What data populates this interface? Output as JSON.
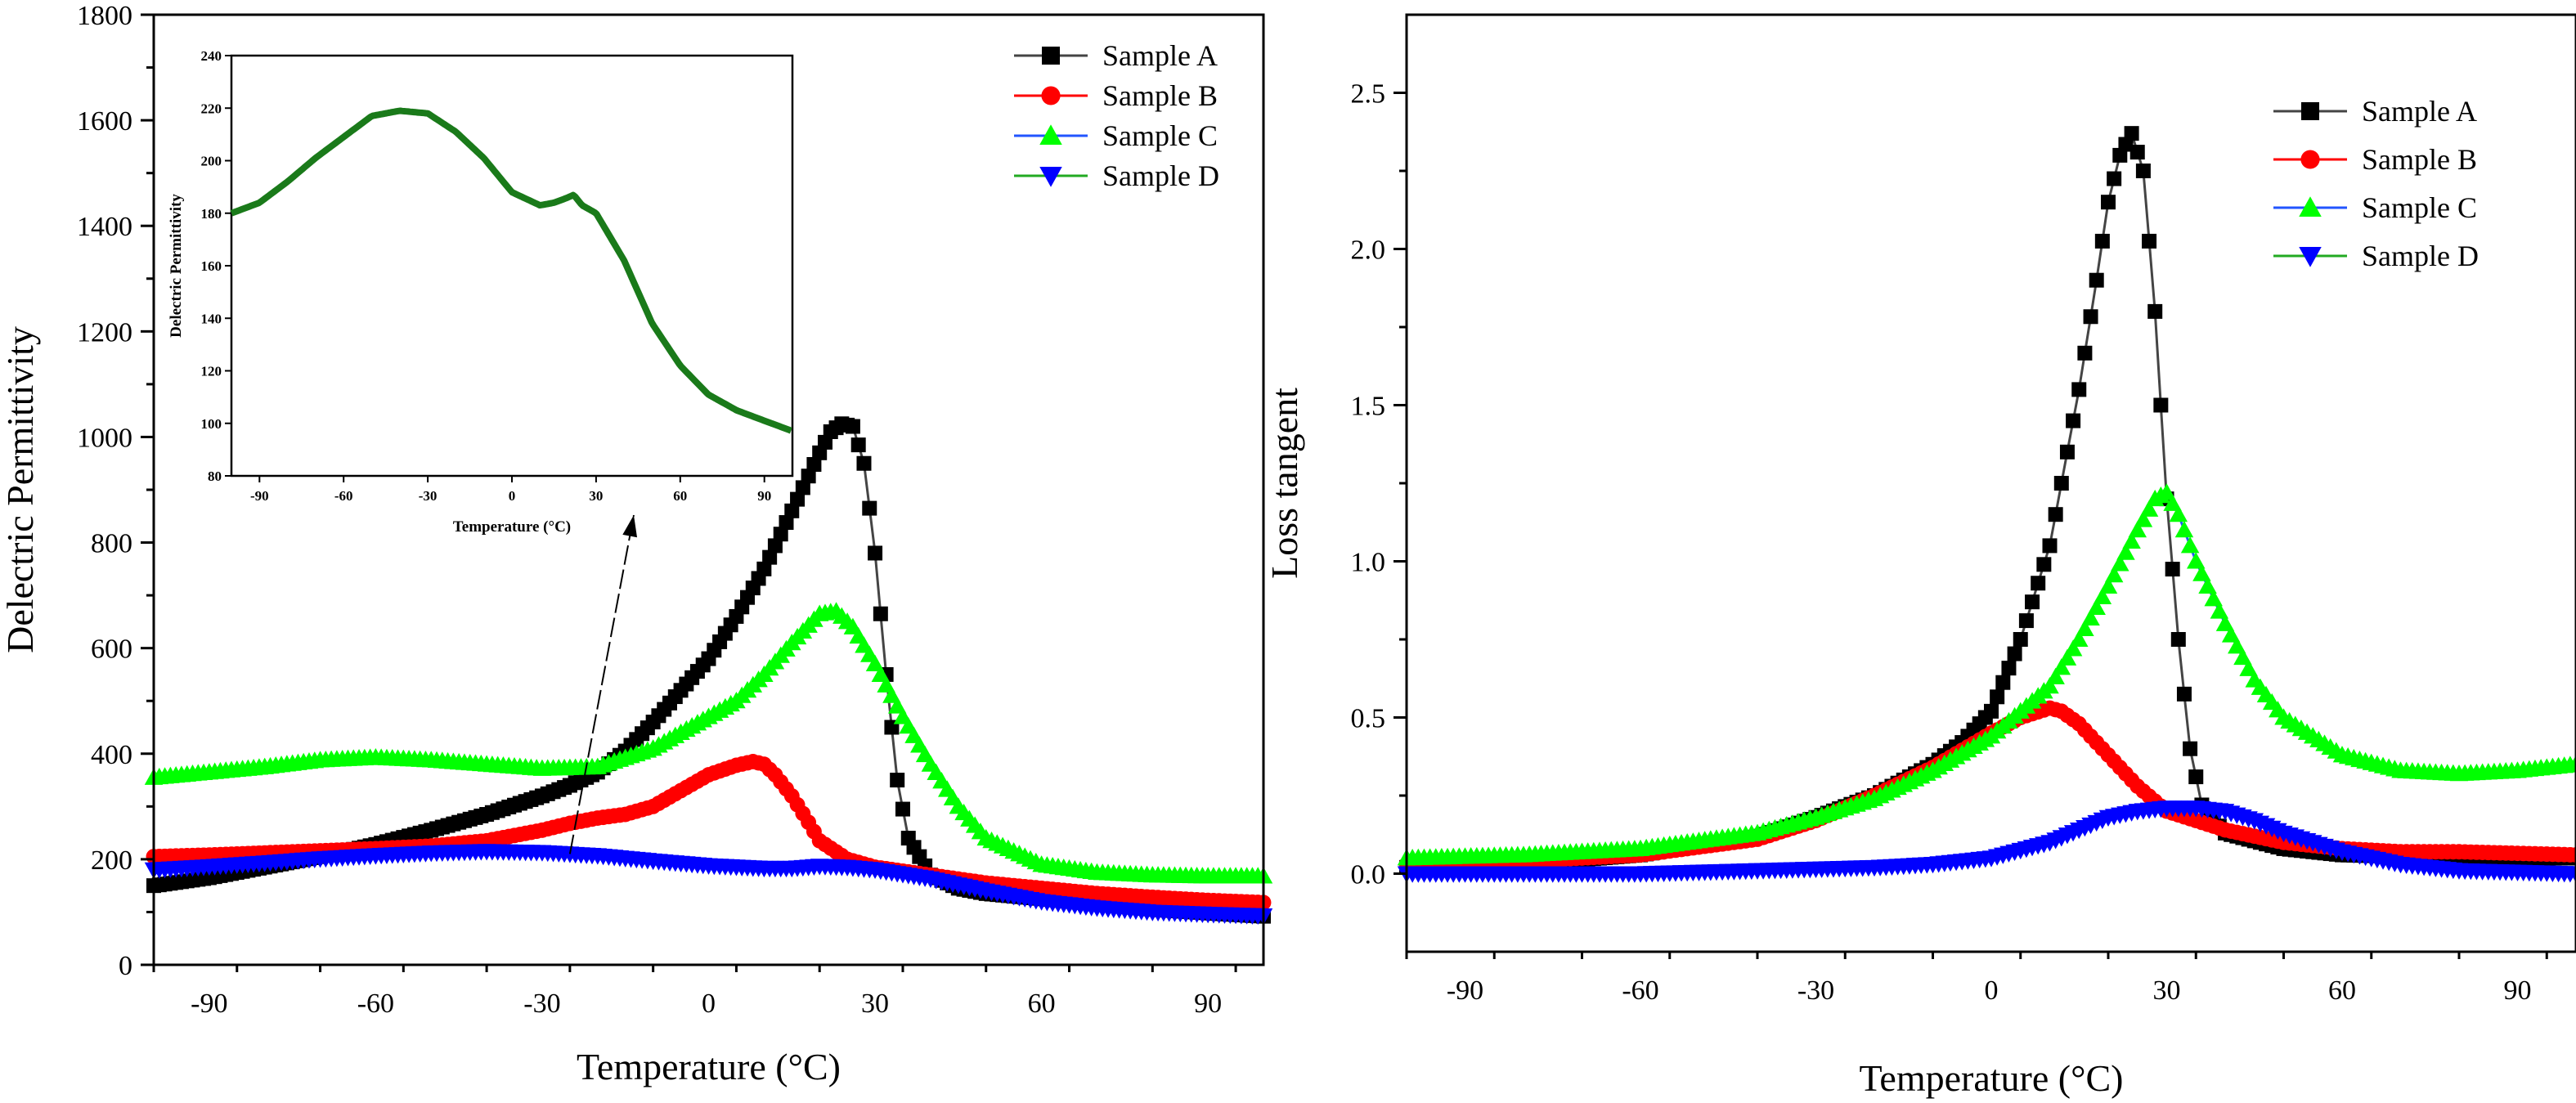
{
  "chart_data": [
    {
      "type": "scatter",
      "xlabel": "Temperature (°C)",
      "ylabel": "Delectric Permittivity",
      "xlim": [
        -100,
        100
      ],
      "ylim": [
        0,
        1800
      ],
      "xticks": [
        -90,
        -60,
        -30,
        0,
        30,
        60,
        90
      ],
      "yticks": [
        0,
        200,
        400,
        600,
        800,
        1000,
        1200,
        1400,
        1600,
        1800
      ],
      "grid": false,
      "legend_position": "top-right",
      "series": [
        {
          "name": "Sample A",
          "color": "#000000",
          "line_color": "#444444",
          "marker": "square",
          "x": [
            -100,
            -90,
            -80,
            -70,
            -60,
            -50,
            -40,
            -30,
            -25,
            -20,
            -15,
            -10,
            -5,
            0,
            5,
            10,
            15,
            20,
            22,
            24,
            26,
            28,
            30,
            32,
            34,
            36,
            40,
            45,
            50,
            60,
            70,
            80,
            90,
            100
          ],
          "y": [
            150,
            165,
            185,
            205,
            228,
            255,
            285,
            320,
            340,
            365,
            405,
            460,
            520,
            580,
            660,
            750,
            860,
            970,
            1010,
            1025,
            1020,
            950,
            780,
            550,
            350,
            240,
            170,
            145,
            135,
            125,
            115,
            105,
            98,
            92
          ]
        },
        {
          "name": "Sample B",
          "color": "#ff0000",
          "line_color": "#ff0000",
          "marker": "circle",
          "x": [
            -100,
            -90,
            -80,
            -70,
            -60,
            -50,
            -40,
            -30,
            -25,
            -20,
            -15,
            -10,
            -5,
            0,
            5,
            8,
            10,
            12,
            15,
            18,
            20,
            25,
            30,
            40,
            50,
            60,
            70,
            80,
            90,
            100
          ],
          "y": [
            205,
            208,
            212,
            216,
            220,
            225,
            235,
            255,
            268,
            278,
            285,
            300,
            330,
            360,
            378,
            385,
            380,
            360,
            320,
            270,
            235,
            200,
            185,
            170,
            155,
            145,
            135,
            128,
            122,
            118
          ]
        },
        {
          "name": "Sample C",
          "color": "#00ff00",
          "line_color": "#2255ff",
          "marker": "triangle-up",
          "x": [
            -100,
            -90,
            -80,
            -70,
            -60,
            -50,
            -40,
            -30,
            -20,
            -10,
            -5,
            0,
            5,
            10,
            15,
            20,
            23,
            26,
            30,
            35,
            40,
            45,
            50,
            60,
            70,
            80,
            90,
            100
          ],
          "y": [
            355,
            365,
            375,
            388,
            393,
            388,
            380,
            372,
            375,
            410,
            440,
            470,
            500,
            550,
            610,
            665,
            670,
            640,
            570,
            470,
            380,
            300,
            240,
            190,
            175,
            170,
            168,
            168
          ]
        },
        {
          "name": "Sample D",
          "color": "#0000ff",
          "line_color": "#22aa22",
          "marker": "triangle-down",
          "x": [
            -100,
            -90,
            -80,
            -70,
            -60,
            -50,
            -40,
            -30,
            -20,
            -10,
            0,
            10,
            15,
            20,
            25,
            30,
            40,
            50,
            60,
            70,
            80,
            90,
            100
          ],
          "y": [
            180,
            186,
            193,
            201,
            207,
            212,
            215,
            213,
            207,
            197,
            188,
            183,
            183,
            187,
            185,
            180,
            163,
            140,
            120,
            108,
            100,
            96,
            93
          ]
        }
      ],
      "legend": [
        "Sample A",
        "Sample B",
        "Sample C",
        "Sample D"
      ]
    },
    {
      "type": "line",
      "xlabel": "Temperature (°C)",
      "ylabel": "Delectric Permittivity",
      "xlim": [
        -100,
        100
      ],
      "ylim": [
        80,
        240
      ],
      "xticks": [
        -90,
        -60,
        -30,
        0,
        30,
        60,
        90
      ],
      "yticks": [
        80,
        100,
        120,
        140,
        160,
        180,
        200,
        220,
        240
      ],
      "series": [
        {
          "name": "Sample D",
          "color": "#1a7a1a",
          "x": [
            -100,
            -90,
            -80,
            -70,
            -60,
            -50,
            -40,
            -30,
            -20,
            -10,
            0,
            10,
            15,
            20,
            22,
            25,
            30,
            40,
            50,
            60,
            70,
            80,
            90,
            100
          ],
          "y": [
            180,
            184,
            192,
            201,
            209,
            217,
            219,
            218,
            211,
            201,
            188,
            183,
            184,
            186,
            187,
            183,
            180,
            162,
            138,
            122,
            111,
            105,
            101,
            97
          ]
        }
      ]
    },
    {
      "type": "scatter",
      "xlabel": "Temperature (°C)",
      "ylabel": "Loss tangent",
      "xlim": [
        -100,
        100
      ],
      "ylim": [
        -0.25,
        2.75
      ],
      "xticks": [
        -90,
        -60,
        -30,
        0,
        30,
        60,
        90
      ],
      "yticks": [
        0.0,
        0.5,
        1.0,
        1.5,
        2.0,
        2.5
      ],
      "grid": false,
      "legend_position": "top-right",
      "series": [
        {
          "name": "Sample A",
          "color": "#000000",
          "line_color": "#444444",
          "marker": "square",
          "x": [
            -100,
            -80,
            -60,
            -40,
            -30,
            -20,
            -10,
            -5,
            0,
            5,
            10,
            15,
            18,
            20,
            22,
            24,
            26,
            28,
            30,
            32,
            34,
            36,
            40,
            50,
            60,
            80,
            100
          ],
          "y": [
            0.02,
            0.03,
            0.06,
            0.12,
            0.18,
            0.25,
            0.35,
            0.42,
            0.52,
            0.75,
            1.05,
            1.55,
            1.9,
            2.15,
            2.3,
            2.37,
            2.25,
            1.8,
            1.2,
            0.75,
            0.4,
            0.22,
            0.13,
            0.08,
            0.06,
            0.05,
            0.05
          ]
        },
        {
          "name": "Sample B",
          "color": "#ff0000",
          "line_color": "#ff0000",
          "marker": "circle",
          "x": [
            -100,
            -80,
            -60,
            -40,
            -30,
            -20,
            -10,
            0,
            5,
            10,
            12,
            15,
            20,
            25,
            30,
            40,
            50,
            60,
            70,
            80,
            100
          ],
          "y": [
            0.03,
            0.04,
            0.06,
            0.11,
            0.17,
            0.25,
            0.34,
            0.45,
            0.5,
            0.53,
            0.52,
            0.48,
            0.38,
            0.28,
            0.2,
            0.14,
            0.1,
            0.08,
            0.07,
            0.07,
            0.06
          ]
        },
        {
          "name": "Sample C",
          "color": "#00ff00",
          "line_color": "#2255ff",
          "marker": "triangle-up",
          "x": [
            -100,
            -80,
            -60,
            -40,
            -30,
            -20,
            -10,
            0,
            10,
            15,
            20,
            25,
            28,
            30,
            32,
            35,
            40,
            45,
            50,
            60,
            70,
            80,
            90,
            100
          ],
          "y": [
            0.05,
            0.06,
            0.08,
            0.13,
            0.18,
            0.24,
            0.33,
            0.44,
            0.6,
            0.75,
            0.92,
            1.1,
            1.2,
            1.22,
            1.15,
            1.0,
            0.8,
            0.62,
            0.5,
            0.38,
            0.33,
            0.32,
            0.33,
            0.35
          ]
        },
        {
          "name": "Sample D",
          "color": "#0000ff",
          "line_color": "#22aa22",
          "marker": "triangle-down",
          "x": [
            -100,
            -80,
            -60,
            -40,
            -20,
            -10,
            0,
            10,
            15,
            20,
            25,
            30,
            35,
            40,
            45,
            50,
            60,
            70,
            80,
            100
          ],
          "y": [
            0.0,
            0.0,
            0.0,
            0.01,
            0.02,
            0.03,
            0.05,
            0.1,
            0.14,
            0.18,
            0.2,
            0.21,
            0.21,
            0.2,
            0.17,
            0.13,
            0.07,
            0.03,
            0.01,
            0.0
          ]
        }
      ],
      "legend": [
        "Sample A",
        "Sample B",
        "Sample C",
        "Sample D"
      ]
    }
  ]
}
